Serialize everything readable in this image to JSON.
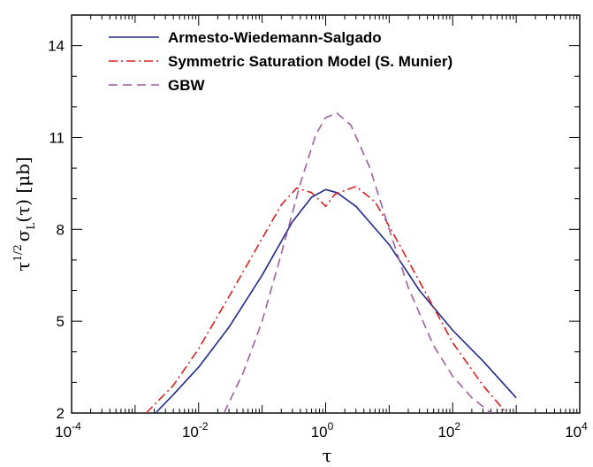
{
  "chart_data": {
    "type": "line",
    "xlabel": "τ",
    "ylabel_parts": {
      "base": "τ",
      "exponent": "1/2",
      "sigma": "σ",
      "subscript": "L",
      "tail": "(τ) [μb]"
    },
    "x_scale": "log",
    "xlim": [
      0.0001,
      10000
    ],
    "ylim": [
      2,
      15
    ],
    "x_ticks": [
      {
        "value": 0.0001,
        "mant": "10",
        "exp": "-4"
      },
      {
        "value": 0.01,
        "mant": "10",
        "exp": "-2"
      },
      {
        "value": 1,
        "mant": "10",
        "exp": "0"
      },
      {
        "value": 100,
        "mant": "10",
        "exp": "2"
      },
      {
        "value": 10000,
        "mant": "10",
        "exp": "4"
      }
    ],
    "y_ticks": [
      2,
      5,
      8,
      11,
      14
    ],
    "grid": false,
    "legend_position": "top-left",
    "series": [
      {
        "name": "Armesto-Wiedemann-Salgado",
        "color": "#1f2a8c",
        "dash": "solid",
        "points": [
          [
            0.0021,
            2.0
          ],
          [
            0.004,
            2.6
          ],
          [
            0.01,
            3.5
          ],
          [
            0.03,
            4.8
          ],
          [
            0.1,
            6.5
          ],
          [
            0.3,
            8.25
          ],
          [
            0.6,
            9.05
          ],
          [
            1.0,
            9.3
          ],
          [
            1.5,
            9.2
          ],
          [
            3.0,
            8.75
          ],
          [
            10,
            7.5
          ],
          [
            30,
            6.0
          ],
          [
            100,
            4.7
          ],
          [
            300,
            3.7
          ],
          [
            1000,
            2.5
          ]
        ]
      },
      {
        "name": "Symmetric Saturation Model (S. Munier)",
        "color": "#dd1f1f",
        "dash": "dashdot",
        "points": [
          [
            0.0015,
            2.0
          ],
          [
            0.004,
            2.9
          ],
          [
            0.01,
            4.1
          ],
          [
            0.03,
            5.8
          ],
          [
            0.1,
            7.7
          ],
          [
            0.2,
            8.8
          ],
          [
            0.35,
            9.35
          ],
          [
            0.6,
            9.2
          ],
          [
            1.0,
            8.75
          ],
          [
            1.4,
            9.15
          ],
          [
            3.0,
            9.4
          ],
          [
            6,
            8.9
          ],
          [
            10,
            8.1
          ],
          [
            30,
            6.3
          ],
          [
            100,
            4.3
          ],
          [
            300,
            2.9
          ],
          [
            700,
            2.0
          ]
        ]
      },
      {
        "name": "GBW",
        "color": "#9c5fa0",
        "dash": "dashed",
        "points": [
          [
            0.025,
            2.0
          ],
          [
            0.05,
            3.3
          ],
          [
            0.1,
            5.0
          ],
          [
            0.2,
            7.2
          ],
          [
            0.4,
            9.5
          ],
          [
            0.7,
            11.1
          ],
          [
            1.0,
            11.65
          ],
          [
            1.5,
            11.8
          ],
          [
            2.5,
            11.4
          ],
          [
            5,
            10.0
          ],
          [
            10,
            8.0
          ],
          [
            20,
            6.1
          ],
          [
            50,
            4.2
          ],
          [
            100,
            3.2
          ],
          [
            200,
            2.5
          ],
          [
            400,
            2.0
          ]
        ]
      }
    ]
  }
}
